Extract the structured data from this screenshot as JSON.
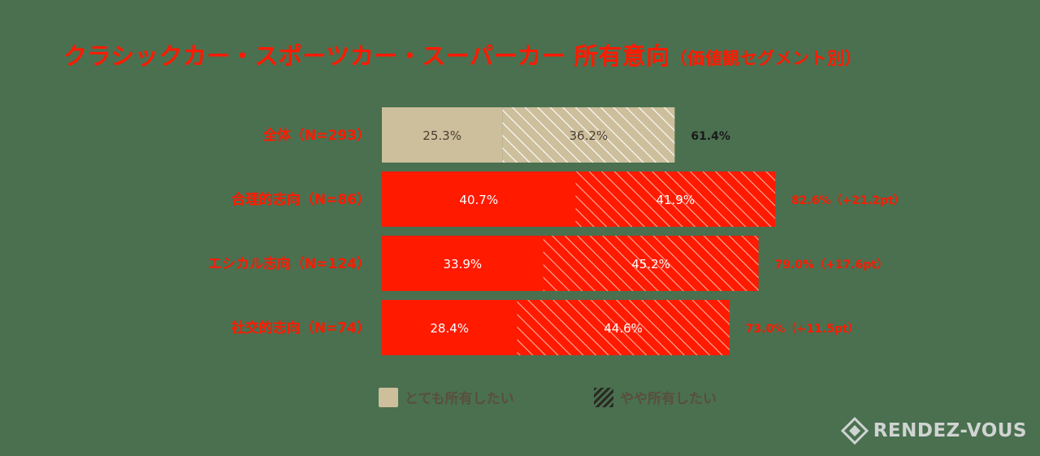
{
  "chart_data": {
    "type": "bar",
    "orientation": "horizontal",
    "stacked": true,
    "title": "クラシックカー・スポーツカー・スーパーカー 所有意向",
    "subtitle": "（価値観セグメント別）",
    "categories": [
      "全体（N=293）",
      "合理的志向（N=86）",
      "エシカル志向（N=124）",
      "社交的志向（N=74）"
    ],
    "series": [
      {
        "name": "とても所有したい",
        "values": [
          25.3,
          40.7,
          33.9,
          28.4
        ]
      },
      {
        "name": "やや所有したい",
        "values": [
          36.2,
          41.9,
          45.2,
          44.6
        ]
      }
    ],
    "value_labels": [
      [
        "25.3%",
        "40.7%",
        "33.9%",
        "28.4%"
      ],
      [
        "36.2%",
        "41.9%",
        "45.2%",
        "44.6%"
      ]
    ],
    "totals": [
      61.4,
      82.6,
      79.0,
      73.0
    ],
    "total_labels": [
      "61.4%",
      "82.6%（+21.2pt）",
      "79.0%（+17.6pt）",
      "73.0%（+11.5pt）"
    ],
    "colors": {
      "overall_solid": "#cdbf9c",
      "segment_solid": "#ff1a00",
      "category_label": "#ff1a00",
      "total_overall": "#1a1a1a",
      "total_segment": "#ff1a00",
      "value_overall": "#4a4033",
      "value_segment": "#ffffff"
    },
    "legend": {
      "position": "bottom",
      "items": [
        "とても所有したい",
        "やや所有したい"
      ]
    },
    "grid": false
  },
  "logo": {
    "text": "RENDEZ-VOUS",
    "icon": "diamond-logo-icon"
  }
}
